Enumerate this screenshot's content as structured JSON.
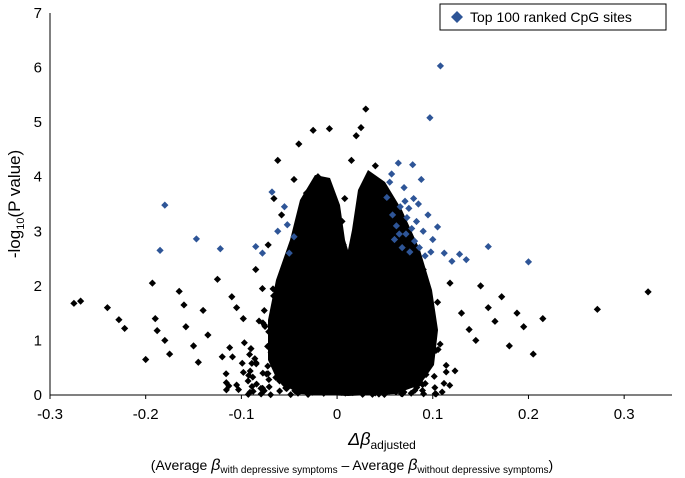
{
  "chart_data": {
    "type": "scatter",
    "xlabel": {
      "symbol": "Δβ",
      "sub": "adjusted",
      "line2_open": "(Average ",
      "beta": "β",
      "sub_with": "with depressive symptoms",
      "minus": " – Average ",
      "sub_without": "without depressive symptoms",
      "line2_close": ")"
    },
    "ylabel": {
      "pre": "-log",
      "sub": "10",
      "post": "(P value)"
    },
    "xlim": [
      -0.3,
      0.35
    ],
    "ylim": [
      0,
      7
    ],
    "x_ticks": [
      "-0.3",
      "-0.2",
      "-0.1",
      "0",
      "0.1",
      "0.2",
      "0.3"
    ],
    "y_ticks": [
      "0",
      "1",
      "2",
      "3",
      "4",
      "5",
      "6",
      "7"
    ],
    "grid": false,
    "legend_position": "top-right",
    "colors": {
      "background_points": "#000000",
      "top_points": "#2e5597"
    },
    "series": [
      {
        "name": "",
        "color": "#000000",
        "points": [
          [
            -0.275,
            1.68
          ],
          [
            -0.268,
            1.72
          ],
          [
            -0.24,
            1.6
          ],
          [
            -0.228,
            1.38
          ],
          [
            -0.222,
            1.22
          ],
          [
            -0.2,
            0.65
          ],
          [
            -0.193,
            2.05
          ],
          [
            -0.19,
            1.4
          ],
          [
            -0.188,
            1.18
          ],
          [
            -0.18,
            1.0
          ],
          [
            -0.175,
            0.75
          ],
          [
            -0.165,
            1.9
          ],
          [
            -0.16,
            1.65
          ],
          [
            -0.158,
            1.25
          ],
          [
            -0.15,
            0.9
          ],
          [
            -0.145,
            0.6
          ],
          [
            -0.14,
            1.55
          ],
          [
            -0.135,
            1.1
          ],
          [
            -0.125,
            2.12
          ],
          [
            -0.12,
            0.7
          ],
          [
            -0.11,
            1.8
          ],
          [
            -0.105,
            1.6
          ],
          [
            -0.098,
            1.4
          ],
          [
            -0.09,
            0.85
          ],
          [
            -0.085,
            2.3
          ],
          [
            -0.078,
            1.95
          ],
          [
            -0.072,
            2.75
          ],
          [
            -0.066,
            3.6
          ],
          [
            -0.062,
            4.3
          ],
          [
            -0.058,
            3.3
          ],
          [
            -0.045,
            3.95
          ],
          [
            -0.04,
            4.6
          ],
          [
            -0.032,
            3.7
          ],
          [
            -0.025,
            4.85
          ],
          [
            -0.02,
            4.0
          ],
          [
            -0.008,
            4.88
          ],
          [
            0.008,
            3.6
          ],
          [
            0.015,
            4.3
          ],
          [
            0.02,
            4.75
          ],
          [
            0.025,
            4.9
          ],
          [
            0.03,
            5.24
          ],
          [
            0.04,
            4.2
          ],
          [
            0.052,
            3.3
          ],
          [
            0.062,
            2.7
          ],
          [
            0.078,
            2.5
          ],
          [
            0.09,
            2.3
          ],
          [
            0.105,
            1.7
          ],
          [
            0.118,
            2.05
          ],
          [
            0.13,
            1.5
          ],
          [
            0.138,
            1.2
          ],
          [
            0.145,
            1.0
          ],
          [
            0.15,
            2.0
          ],
          [
            0.158,
            1.6
          ],
          [
            0.165,
            1.35
          ],
          [
            0.172,
            1.8
          ],
          [
            0.18,
            0.9
          ],
          [
            0.188,
            1.5
          ],
          [
            0.195,
            1.25
          ],
          [
            0.205,
            0.75
          ],
          [
            0.215,
            1.4
          ],
          [
            0.272,
            1.57
          ],
          [
            0.325,
            1.89
          ]
        ]
      },
      {
        "name": "Top 100 ranked CpG sites",
        "color": "#2e5597",
        "points": [
          [
            -0.18,
            3.48
          ],
          [
            -0.185,
            2.65
          ],
          [
            -0.147,
            2.86
          ],
          [
            -0.122,
            2.68
          ],
          [
            -0.085,
            2.72
          ],
          [
            -0.078,
            2.6
          ],
          [
            -0.068,
            3.72
          ],
          [
            -0.062,
            3.0
          ],
          [
            -0.055,
            3.45
          ],
          [
            -0.052,
            3.12
          ],
          [
            -0.05,
            2.6
          ],
          [
            -0.045,
            2.9
          ],
          [
            0.052,
            3.62
          ],
          [
            0.055,
            3.9
          ],
          [
            0.057,
            4.05
          ],
          [
            0.058,
            3.3
          ],
          [
            0.06,
            2.85
          ],
          [
            0.062,
            3.1
          ],
          [
            0.064,
            4.25
          ],
          [
            0.066,
            3.45
          ],
          [
            0.068,
            2.7
          ],
          [
            0.07,
            3.8
          ],
          [
            0.071,
            3.55
          ],
          [
            0.072,
            2.95
          ],
          [
            0.073,
            3.25
          ],
          [
            0.075,
            3.42
          ],
          [
            0.076,
            2.62
          ],
          [
            0.078,
            3.05
          ],
          [
            0.079,
            4.22
          ],
          [
            0.08,
            3.6
          ],
          [
            0.081,
            2.82
          ],
          [
            0.083,
            3.18
          ],
          [
            0.085,
            3.5
          ],
          [
            0.086,
            2.7
          ],
          [
            0.088,
            3.95
          ],
          [
            0.09,
            3.0
          ],
          [
            0.092,
            2.55
          ],
          [
            0.095,
            3.3
          ],
          [
            0.097,
            5.08
          ],
          [
            0.098,
            2.62
          ],
          [
            0.1,
            2.85
          ],
          [
            0.105,
            3.08
          ],
          [
            0.108,
            6.03
          ],
          [
            0.112,
            2.6
          ],
          [
            0.12,
            2.45
          ],
          [
            0.128,
            2.58
          ],
          [
            0.135,
            2.48
          ],
          [
            0.158,
            2.72
          ],
          [
            0.2,
            2.44
          ],
          [
            0.065,
            2.95
          ]
        ]
      }
    ]
  }
}
